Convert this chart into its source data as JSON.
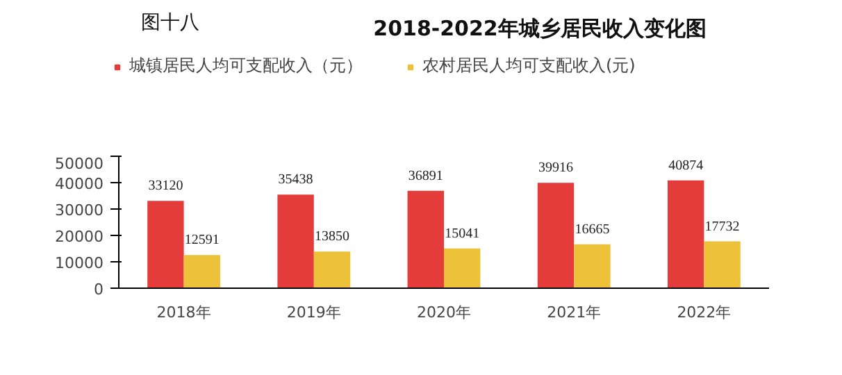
{
  "chart_data": {
    "type": "bar",
    "title": "2018-2022年城乡居民收入变化图",
    "annotations": [
      "图十八"
    ],
    "categories": [
      "2018年",
      "2019年",
      "2020年",
      "2021年",
      "2022年"
    ],
    "series": [
      {
        "name": "城镇居民人均可支配收入（元）",
        "color": "#e43c3a",
        "values": [
          33120,
          35438,
          36891,
          39916,
          40874
        ]
      },
      {
        "name": "农村居民人均可支配收入(元)",
        "color": "#eec13a",
        "values": [
          12591,
          13850,
          15041,
          16665,
          17732
        ]
      }
    ],
    "ylim": [
      0,
      50000
    ],
    "yticks": [
      0,
      10000,
      20000,
      30000,
      40000,
      50000
    ],
    "grid": false,
    "legend": "top",
    "data_labels": true
  }
}
